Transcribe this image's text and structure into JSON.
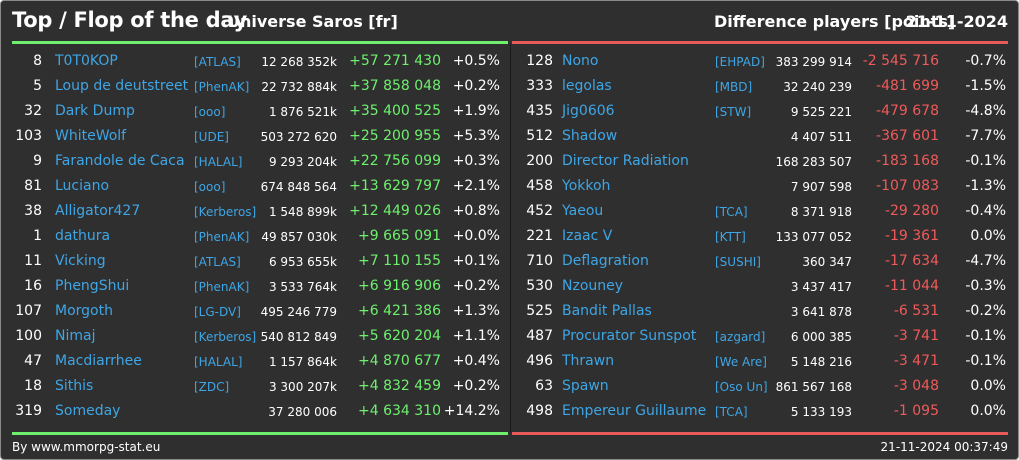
{
  "header": {
    "title": "Top / Flop of the day",
    "universe": "Universe Saros [fr]",
    "metric": "Difference players [points]",
    "date": "21-11-2024"
  },
  "colors": {
    "background": "#2f2f2f",
    "top_accent": "#6ef06e",
    "flop_accent": "#e85a5a",
    "link": "#3ea6e6"
  },
  "top": [
    {
      "rank": "8",
      "name": "T0T0KOP",
      "alliance": "[ATLAS]",
      "points": "12 268 352k",
      "diff": "+57 271 430",
      "pct": "+0.5%"
    },
    {
      "rank": "5",
      "name": "Loup de deutstreet",
      "alliance": "[PhenAK]",
      "points": "22 732 884k",
      "diff": "+37 858 048",
      "pct": "+0.2%"
    },
    {
      "rank": "32",
      "name": "Dark Dump",
      "alliance": "[ooo]",
      "points": "1 876 521k",
      "diff": "+35 400 525",
      "pct": "+1.9%"
    },
    {
      "rank": "103",
      "name": "WhiteWolf",
      "alliance": "[UDE]",
      "points": "503 272 620",
      "diff": "+25 200 955",
      "pct": "+5.3%"
    },
    {
      "rank": "9",
      "name": "Farandole de Caca",
      "alliance": "[HALAL]",
      "points": "9 293 204k",
      "diff": "+22 756 099",
      "pct": "+0.3%"
    },
    {
      "rank": "81",
      "name": "Luciano",
      "alliance": "[ooo]",
      "points": "674 848 564",
      "diff": "+13 629 797",
      "pct": "+2.1%"
    },
    {
      "rank": "38",
      "name": "Alligator427",
      "alliance": "[Kerberos]",
      "points": "1 548 899k",
      "diff": "+12 449 026",
      "pct": "+0.8%"
    },
    {
      "rank": "1",
      "name": "dathura",
      "alliance": "[PhenAK]",
      "points": "49 857 030k",
      "diff": "+9 665 091",
      "pct": "+0.0%"
    },
    {
      "rank": "11",
      "name": "Vicking",
      "alliance": "[ATLAS]",
      "points": "6 953 655k",
      "diff": "+7 110 155",
      "pct": "+0.1%"
    },
    {
      "rank": "16",
      "name": "PhengShui",
      "alliance": "[PhenAK]",
      "points": "3 533 764k",
      "diff": "+6 916 906",
      "pct": "+0.2%"
    },
    {
      "rank": "107",
      "name": "Morgoth",
      "alliance": "[LG-DV]",
      "points": "495 246 779",
      "diff": "+6 421 386",
      "pct": "+1.3%"
    },
    {
      "rank": "100",
      "name": "Nimaj",
      "alliance": "[Kerberos]",
      "points": "540 812 849",
      "diff": "+5 620 204",
      "pct": "+1.1%"
    },
    {
      "rank": "47",
      "name": "Macdiarrhee",
      "alliance": "[HALAL]",
      "points": "1 157 864k",
      "diff": "+4 870 677",
      "pct": "+0.4%"
    },
    {
      "rank": "18",
      "name": "Sithis",
      "alliance": "[ZDC]",
      "points": "3 300 207k",
      "diff": "+4 832 459",
      "pct": "+0.2%"
    },
    {
      "rank": "319",
      "name": "Someday",
      "alliance": "",
      "points": "37 280 006",
      "diff": "+4 634 310",
      "pct": "+14.2%"
    }
  ],
  "flop": [
    {
      "rank": "128",
      "name": "Nono",
      "alliance": "[EHPAD]",
      "points": "383 299 914",
      "diff": "-2 545 716",
      "pct": "-0.7%"
    },
    {
      "rank": "333",
      "name": "legolas",
      "alliance": "[MBD]",
      "points": "32 240 239",
      "diff": "-481 699",
      "pct": "-1.5%"
    },
    {
      "rank": "435",
      "name": "Jig0606",
      "alliance": "[STW]",
      "points": "9 525 221",
      "diff": "-479 678",
      "pct": "-4.8%"
    },
    {
      "rank": "512",
      "name": "Shadow",
      "alliance": "",
      "points": "4 407 511",
      "diff": "-367 601",
      "pct": "-7.7%"
    },
    {
      "rank": "200",
      "name": "Director Radiation",
      "alliance": "",
      "points": "168 283 507",
      "diff": "-183 168",
      "pct": "-0.1%"
    },
    {
      "rank": "458",
      "name": "Yokkoh",
      "alliance": "",
      "points": "7 907 598",
      "diff": "-107 083",
      "pct": "-1.3%"
    },
    {
      "rank": "452",
      "name": "Yaeou",
      "alliance": "[TCA]",
      "points": "8 371 918",
      "diff": "-29 280",
      "pct": "-0.4%"
    },
    {
      "rank": "221",
      "name": "Izaac V",
      "alliance": "[KTT]",
      "points": "133 077 052",
      "diff": "-19 361",
      "pct": "0.0%"
    },
    {
      "rank": "710",
      "name": "Deflagration",
      "alliance": "[SUSHI]",
      "points": "360 347",
      "diff": "-17 634",
      "pct": "-4.7%"
    },
    {
      "rank": "530",
      "name": "Nzouney",
      "alliance": "",
      "points": "3 437 417",
      "diff": "-11 044",
      "pct": "-0.3%"
    },
    {
      "rank": "525",
      "name": "Bandit Pallas",
      "alliance": "",
      "points": "3 641 878",
      "diff": "-6 531",
      "pct": "-0.2%"
    },
    {
      "rank": "487",
      "name": "Procurator Sunspot",
      "alliance": "[azgard]",
      "points": "6 000 385",
      "diff": "-3 741",
      "pct": "-0.1%"
    },
    {
      "rank": "496",
      "name": "Thrawn",
      "alliance": "[We Are]",
      "points": "5 148 216",
      "diff": "-3 471",
      "pct": "-0.1%"
    },
    {
      "rank": "63",
      "name": "Spawn",
      "alliance": "[Oso Un]",
      "points": "861 567 168",
      "diff": "-3 048",
      "pct": "0.0%"
    },
    {
      "rank": "498",
      "name": "Empereur Guillaume",
      "alliance": "[TCA]",
      "points": "5 133 193",
      "diff": "-1 095",
      "pct": "0.0%"
    }
  ],
  "footer": {
    "source": "By www.mmorpg-stat.eu",
    "timestamp": "21-11-2024 00:37:49"
  }
}
